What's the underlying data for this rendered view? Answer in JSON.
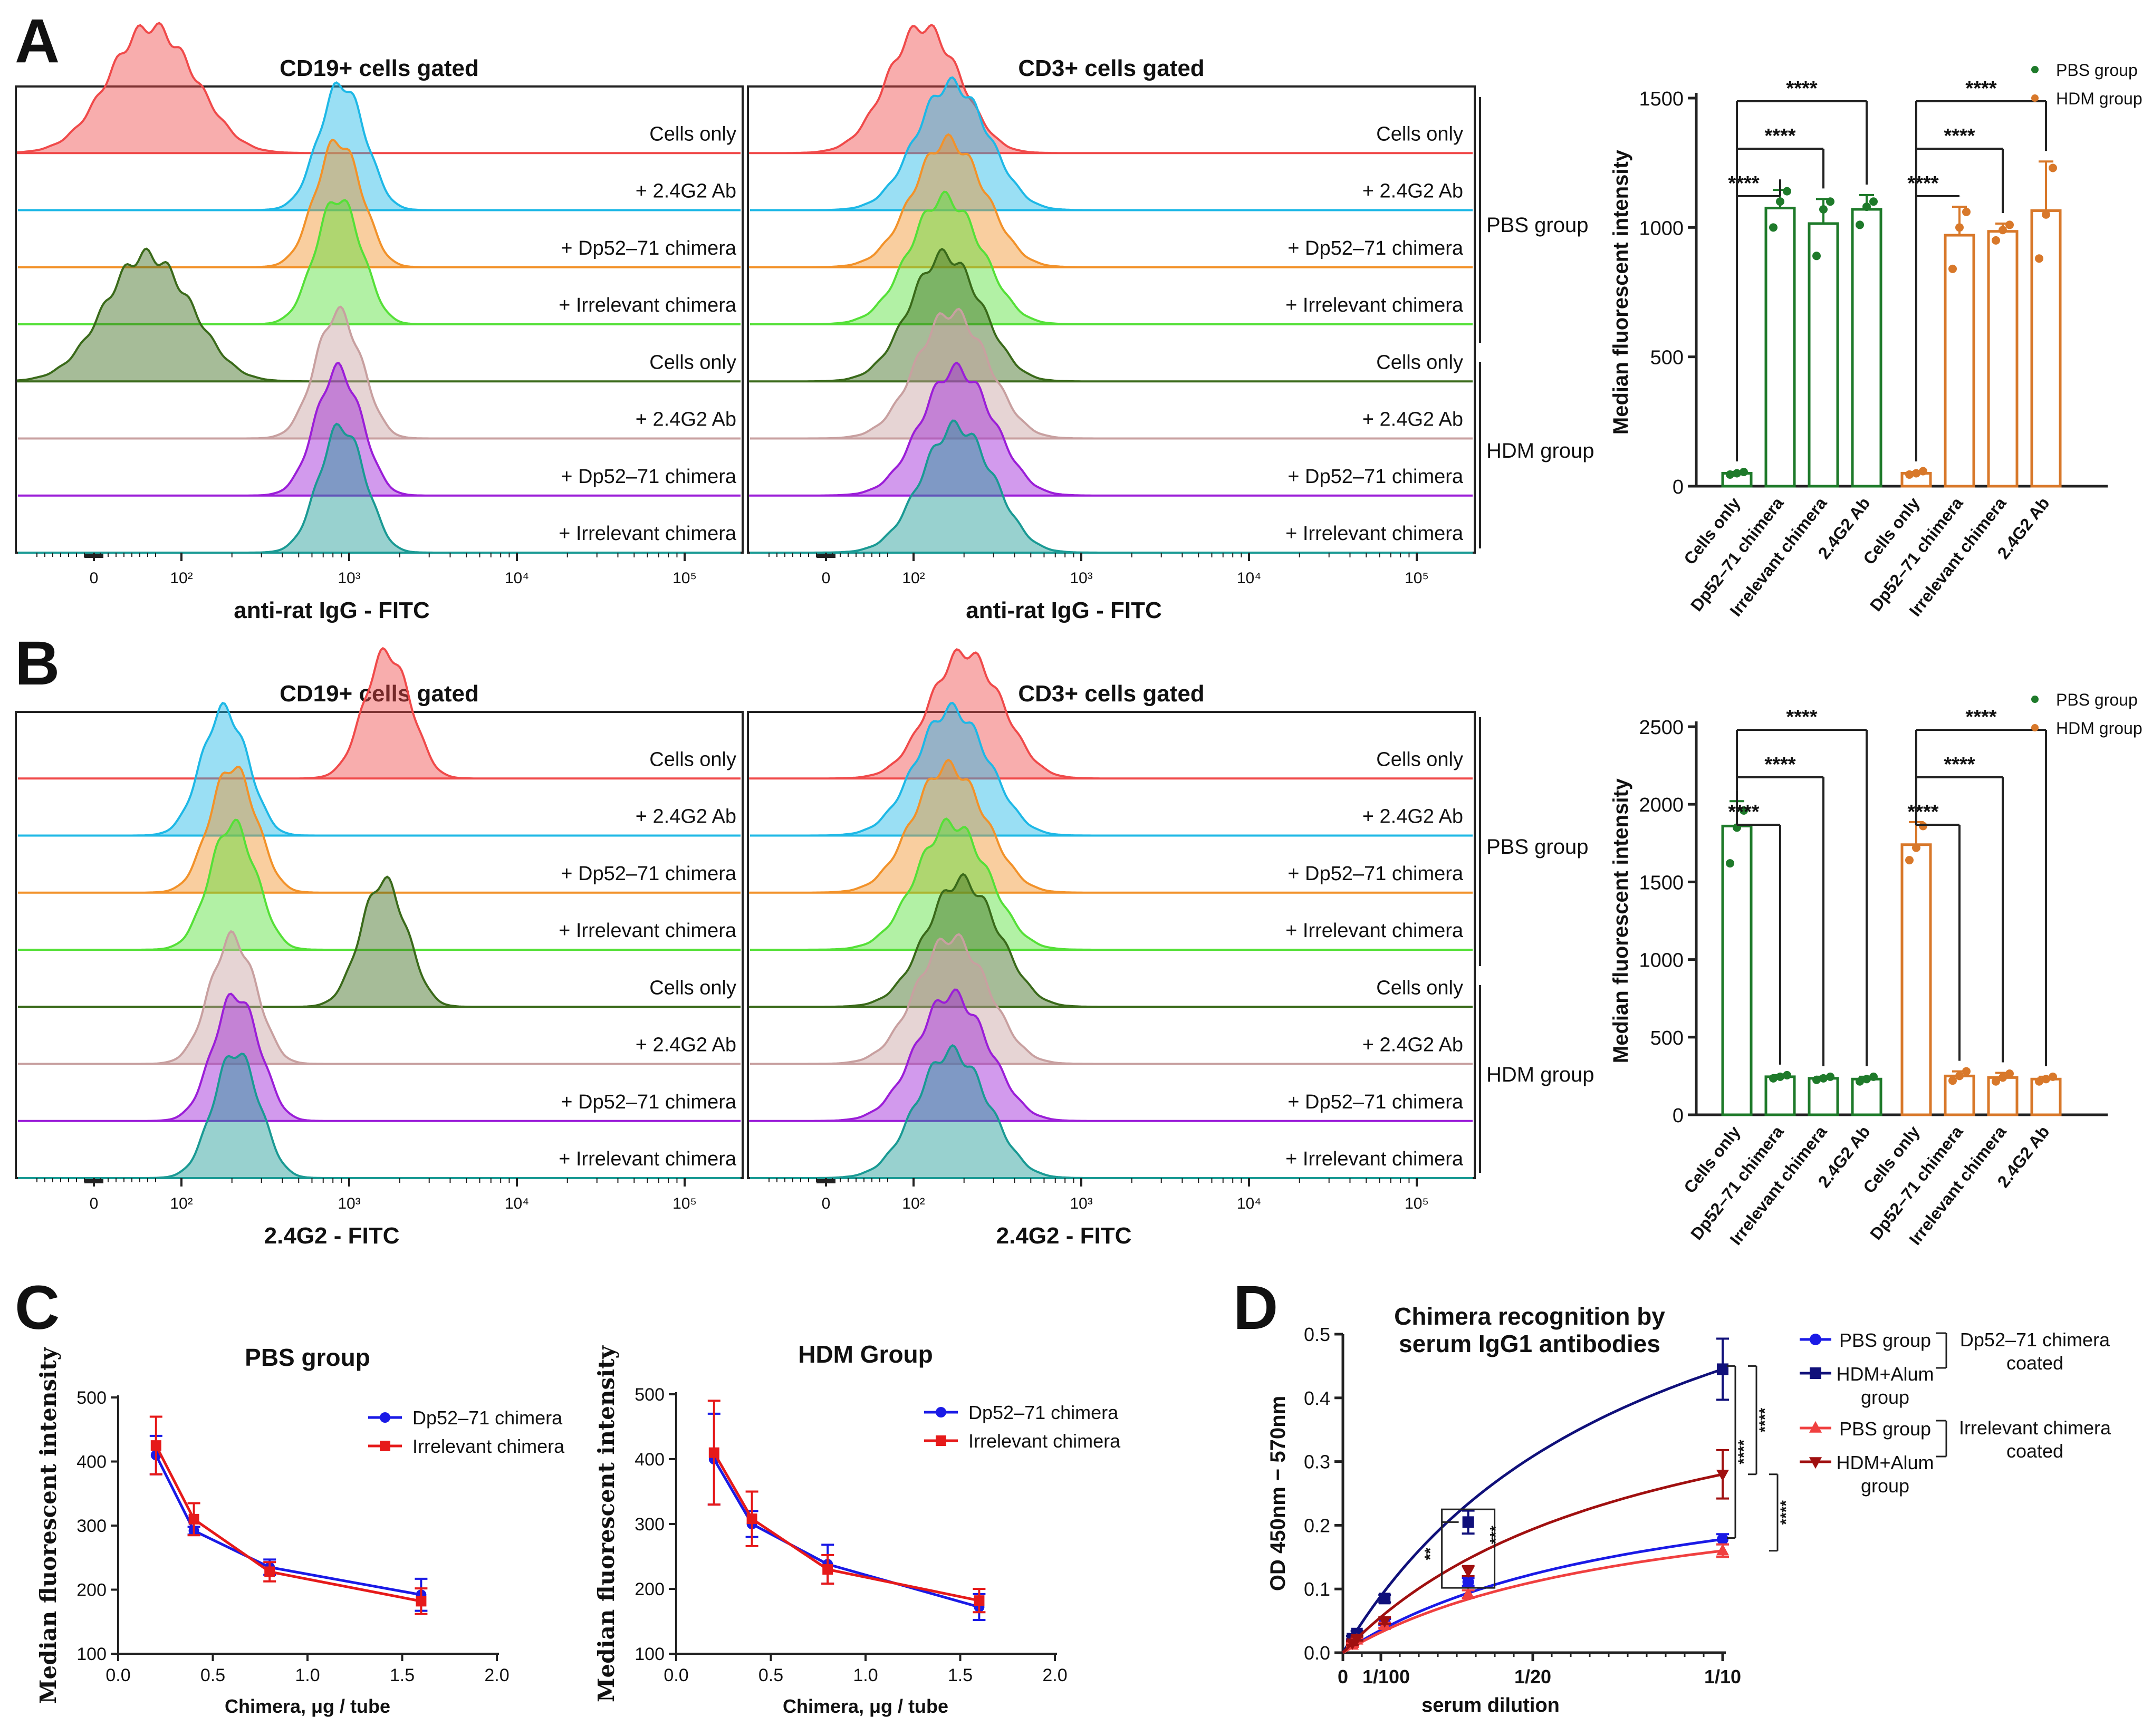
{
  "panel_letters": [
    "A",
    "B",
    "C",
    "D"
  ],
  "common": {
    "hist_rows": [
      "Cells only",
      "+ 2.4G2 Ab",
      "+ Dp52–71 chimera",
      "+ Irrelevant chimera",
      "Cells only",
      "+ 2.4G2 Ab",
      "+ Dp52–71 chimera",
      "+ Irrelevant chimera"
    ],
    "hist_colors": [
      "#f04a4a",
      "#1eb8e6",
      "#f2922a",
      "#55e038",
      "#3a6a1a",
      "#c8a0a0",
      "#9b1ed8",
      "#1a9a94"
    ],
    "log_ticks": [
      "0",
      "10²",
      "10³",
      "10⁴",
      "10⁵"
    ],
    "group_labels": [
      "PBS group",
      "HDM group"
    ],
    "bar_categories": [
      "Cells only",
      "Dp52–71 chimera",
      "Irrelevant chimera",
      "2.4G2 Ab"
    ],
    "sig": "****",
    "green": "#1e7a2a",
    "orange": "#d8782a"
  },
  "panel_a": {
    "cd19_title": "CD19+ cells gated",
    "cd3_title": "CD3+ cells gated",
    "cd19_xlabel": "anti-rat IgG - FITC",
    "cd3_xlabel": "anti-rat IgG - FITC",
    "cd19_peaks_log": [
      1.6,
      2.95,
      2.93,
      2.93,
      1.55,
      2.93,
      2.93,
      2.95
    ],
    "cd3_peaks_log": [
      2.05,
      2.22,
      2.2,
      2.18,
      2.18,
      2.22,
      2.25,
      2.25
    ]
  },
  "panel_b": {
    "cd19_title": "CD19+ cells gated",
    "cd3_title": "CD3+ cells gated",
    "cd19_xlabel": "2.4G2 - FITC",
    "cd3_xlabel": "2.4G2 - FITC",
    "cd19_peaks_log": [
      3.22,
      2.25,
      2.3,
      2.3,
      3.2,
      2.3,
      2.32,
      2.32
    ],
    "cd3_peaks_log": [
      2.3,
      2.22,
      2.2,
      2.22,
      2.28,
      2.22,
      2.22,
      2.22
    ]
  },
  "chart_data": [
    {
      "type": "bar",
      "panel": "A",
      "ylabel": "Median fluorescent intensity",
      "ylim": [
        0,
        1500
      ],
      "yticks": [
        "0",
        "500",
        "1000",
        "1500"
      ],
      "categories": [
        "Cells only",
        "Dp52–71 chimera",
        "Irrelevant chimera",
        "2.4G2 Ab"
      ],
      "series": [
        {
          "name": "PBS group",
          "values": [
            50,
            1075,
            1015,
            1070
          ],
          "errors": [
            5,
            70,
            95,
            55
          ],
          "points": [
            [
              45,
              50,
              55
            ],
            [
              1000,
              1100,
              1140
            ],
            [
              890,
              1070,
              1100
            ],
            [
              1010,
              1080,
              1100
            ]
          ]
        },
        {
          "name": "HDM group",
          "values": [
            50,
            970,
            985,
            1065
          ],
          "errors": [
            5,
            110,
            30,
            190
          ],
          "points": [
            [
              45,
              50,
              58
            ],
            [
              840,
              1000,
              1060
            ],
            [
              950,
              990,
              1010
            ],
            [
              880,
              1050,
              1230
            ]
          ]
        }
      ]
    },
    {
      "type": "bar",
      "panel": "B",
      "ylabel": "Median fluorescent intensity",
      "ylim": [
        0,
        2500
      ],
      "yticks": [
        "0",
        "500",
        "1000",
        "1500",
        "2000",
        "2500"
      ],
      "categories": [
        "Cells only",
        "Dp52–71 chimera",
        "Irrelevant chimera",
        "2.4G2 Ab"
      ],
      "series": [
        {
          "name": "PBS group",
          "values": [
            1860,
            245,
            235,
            230
          ],
          "errors": [
            160,
            10,
            10,
            15
          ],
          "points": [
            [
              1620,
              1850,
              1960
            ],
            [
              235,
              245,
              255
            ],
            [
              225,
              235,
              245
            ],
            [
              215,
              230,
              245
            ]
          ]
        },
        {
          "name": "HDM group",
          "values": [
            1740,
            250,
            240,
            230
          ],
          "errors": [
            145,
            30,
            30,
            15
          ],
          "points": [
            [
              1640,
              1720,
              1860
            ],
            [
              220,
              250,
              280
            ],
            [
              215,
              240,
              265
            ],
            [
              215,
              230,
              245
            ]
          ]
        }
      ]
    },
    {
      "type": "line",
      "panel": "C-left",
      "title": "PBS group",
      "xlabel": "Chimera, μg / tube",
      "ylabel": "Median fluorescent intensity",
      "xlim": [
        0.0,
        2.0
      ],
      "ylim": [
        100,
        500
      ],
      "xticks": [
        "0.0",
        "0.5",
        "1.0",
        "1.5",
        "2.0"
      ],
      "yticks": [
        "100",
        "200",
        "300",
        "400",
        "500"
      ],
      "x": [
        0.2,
        0.4,
        0.8,
        1.6
      ],
      "series": [
        {
          "name": "Dp52–71 chimera",
          "color": "#1a1ae6",
          "marker": "circle",
          "values": [
            410,
            292,
            235,
            192
          ],
          "errors": [
            30,
            6,
            12,
            25
          ]
        },
        {
          "name": "Irrelevant chimera",
          "color": "#e61a1a",
          "marker": "square",
          "values": [
            425,
            310,
            228,
            182
          ],
          "errors": [
            45,
            25,
            15,
            20
          ]
        }
      ]
    },
    {
      "type": "line",
      "panel": "C-right",
      "title": "HDM Group",
      "xlabel": "Chimera, μg / tube",
      "ylabel": "Median fluorescent intensity",
      "xlim": [
        0.0,
        2.0
      ],
      "ylim": [
        100,
        500
      ],
      "xticks": [
        "0.0",
        "0.5",
        "1.0",
        "1.5",
        "2.0"
      ],
      "yticks": [
        "100",
        "200",
        "300",
        "400",
        "500"
      ],
      "x": [
        0.2,
        0.4,
        0.8,
        1.6
      ],
      "series": [
        {
          "name": "Dp52–71 chimera",
          "color": "#1a1ae6",
          "marker": "circle",
          "values": [
            400,
            300,
            238,
            172
          ],
          "errors": [
            70,
            20,
            30,
            20
          ]
        },
        {
          "name": "Irrelevant chimera",
          "color": "#e61a1a",
          "marker": "square",
          "values": [
            410,
            308,
            230,
            182
          ],
          "errors": [
            80,
            42,
            22,
            18
          ]
        }
      ]
    },
    {
      "type": "line",
      "panel": "D",
      "title": "Chimera recognition by serum IgG1 antibodies",
      "title_lines": [
        "Chimera recognition by",
        "serum IgG1 antibodies"
      ],
      "xlabel": "serum dilution",
      "ylabel": "OD 450nm − 570nm",
      "xlim": [
        0,
        0.1
      ],
      "ylim": [
        0.0,
        0.5
      ],
      "xtick_labels": [
        "0",
        "1/100",
        "1/20",
        "1/10"
      ],
      "xtick_values": [
        0,
        0.01,
        0.05,
        0.1
      ],
      "yticks": [
        "0.0",
        "0.1",
        "0.2",
        "0.3",
        "0.4",
        "0.5"
      ],
      "x": [
        0.0025,
        0.0037,
        0.011,
        0.033,
        0.1
      ],
      "series": [
        {
          "name": "PBS group",
          "color": "#1a1ae6",
          "marker": "circle",
          "values": [
            0.018,
            0.025,
            0.048,
            0.111,
            0.178
          ],
          "errors": [
            0.003,
            0.004,
            0.005,
            0.006,
            0.008
          ]
        },
        {
          "name": "HDM+Alum group",
          "color": "#10107a",
          "marker": "square",
          "values": [
            0.022,
            0.03,
            0.085,
            0.205,
            0.445
          ],
          "errors": [
            0.004,
            0.004,
            0.006,
            0.018,
            0.048
          ]
        },
        {
          "name": "PBS group",
          "color": "#f04040",
          "marker": "triangle-up",
          "values": [
            0.012,
            0.02,
            0.043,
            0.092,
            0.16
          ],
          "errors": [
            0.003,
            0.003,
            0.004,
            0.006,
            0.01
          ]
        },
        {
          "name": "HDM+Alum group",
          "color": "#a01010",
          "marker": "triangle-down",
          "values": [
            0.015,
            0.022,
            0.05,
            0.128,
            0.28
          ],
          "errors": [
            0.003,
            0.003,
            0.005,
            0.008,
            0.038
          ]
        }
      ],
      "legend_groups": [
        "Dp52–71 chimera coated",
        "Irrelevant chimera coated"
      ],
      "legend_group_lines": [
        [
          "Dp52–71 chimera",
          "coated"
        ],
        [
          "Irrelevant chimera",
          "coated"
        ]
      ],
      "legend_entry_lines": [
        [
          "PBS group"
        ],
        [
          "HDM+Alum",
          "group"
        ],
        [
          "PBS group"
        ],
        [
          "HDM+Alum",
          "group"
        ]
      ],
      "annotations": [
        "**",
        "***",
        "****",
        "****",
        "****"
      ]
    }
  ]
}
